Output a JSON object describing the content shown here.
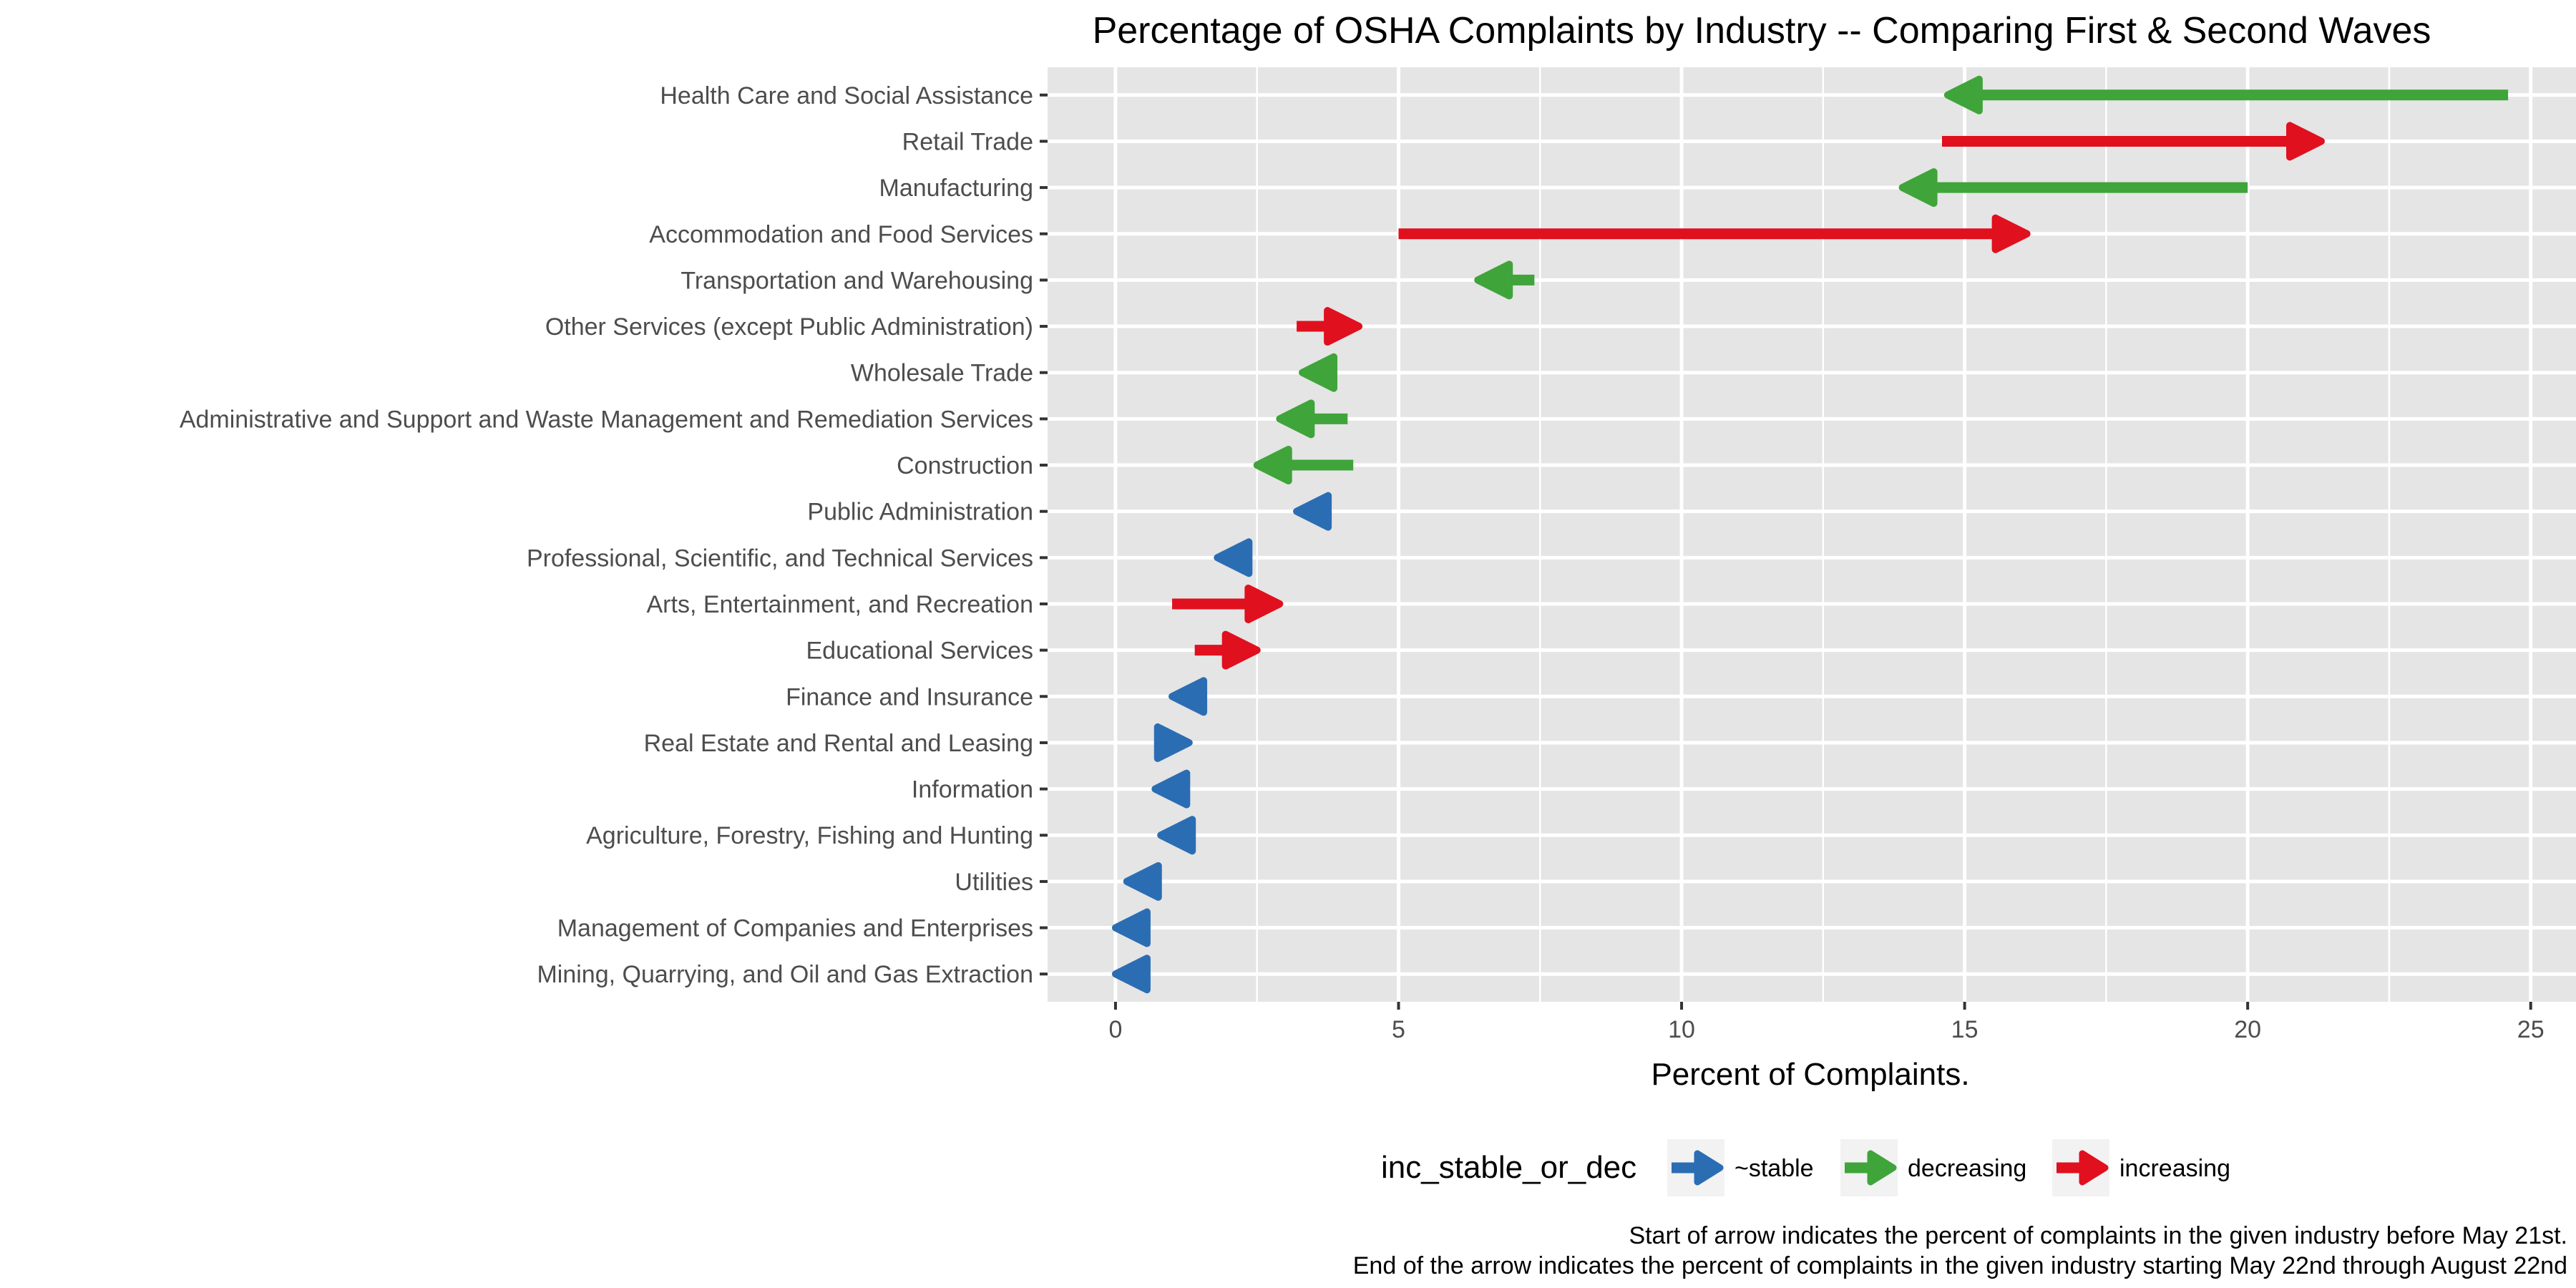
{
  "chart_data": {
    "type": "arrow-dumbbell",
    "title": "Percentage of OSHA Complaints by Industry -- Comparing First & Second Waves",
    "xlabel": "Percent of Complaints.",
    "ylabel": "",
    "xlim": [
      -1.2,
      25.8
    ],
    "x_ticks": [
      0,
      5,
      10,
      15,
      20,
      25
    ],
    "grid": true,
    "legend": {
      "title": "inc_stable_or_dec",
      "position": "bottom",
      "entries": [
        {
          "key": "stable",
          "label": "~stable"
        },
        {
          "key": "decreasing",
          "label": "decreasing"
        },
        {
          "key": "increasing",
          "label": "increasing"
        }
      ]
    },
    "colors": {
      "stable": "#2b6db3",
      "decreasing": "#3fa43a",
      "increasing": "#e0101e"
    },
    "caption": [
      "Start of arrow indicates the percent of complaints in the given industry before May 21st.",
      "End of the arrow indicates the percent of complaints in the given industry starting May 22nd through August 22nd"
    ],
    "series": [
      {
        "industry": "Health  Care  and  Social  Assistance",
        "start": 24.6,
        "end": 14.7,
        "status": "decreasing"
      },
      {
        "industry": "Retail  Trade",
        "start": 14.6,
        "end": 21.3,
        "status": "increasing"
      },
      {
        "industry": "Manufacturing",
        "start": 20.0,
        "end": 13.9,
        "status": "decreasing"
      },
      {
        "industry": "Accommodation  and  Food  Services",
        "start": 5.0,
        "end": 16.1,
        "status": "increasing"
      },
      {
        "industry": "Transportation   and   Warehousing",
        "start": 7.4,
        "end": 6.4,
        "status": "decreasing"
      },
      {
        "industry": "Other  Services  (except  Public  Administration)",
        "start": 3.2,
        "end": 4.3,
        "status": "increasing"
      },
      {
        "industry": "Wholesale  Trade",
        "start": 3.9,
        "end": 3.3,
        "status": "decreasing"
      },
      {
        "industry": "Administrative  and  Support  and  Waste  Management  and  Remediation  Services",
        "start": 4.1,
        "end": 2.9,
        "status": "decreasing"
      },
      {
        "industry": "Construction",
        "start": 4.2,
        "end": 2.5,
        "status": "decreasing"
      },
      {
        "industry": "Public  Administration",
        "start": 3.6,
        "end": 3.2,
        "status": "stable"
      },
      {
        "industry": "Professional, Scientific, and Technical Services",
        "start": 2.1,
        "end": 1.8,
        "status": "stable"
      },
      {
        "industry": "Arts,   Entertainment,   and   Recreation",
        "start": 1.0,
        "end": 2.9,
        "status": "increasing"
      },
      {
        "industry": "Educational Services",
        "start": 1.4,
        "end": 2.5,
        "status": "increasing"
      },
      {
        "industry": "Finance  and  Insurance",
        "start": 1.5,
        "end": 1.0,
        "status": "stable"
      },
      {
        "industry": "Real Estate  and  Rental  and  Leasing",
        "start": 0.9,
        "end": 1.3,
        "status": "stable"
      },
      {
        "industry": "Information",
        "start": 1.2,
        "end": 0.7,
        "status": "stable"
      },
      {
        "industry": "Agriculture, Forestry, Fishing and Hunting",
        "start": 1.3,
        "end": 0.8,
        "status": "stable"
      },
      {
        "industry": "Utilities",
        "start": 0.7,
        "end": 0.2,
        "status": "stable"
      },
      {
        "industry": "Management of Companies and Enterprises",
        "start": 0.5,
        "end": 0.0,
        "status": "stable"
      },
      {
        "industry": "Mining, Quarrying, and Oil and Gas Extraction",
        "start": 0.5,
        "end": 0.0,
        "status": "stable"
      }
    ]
  }
}
